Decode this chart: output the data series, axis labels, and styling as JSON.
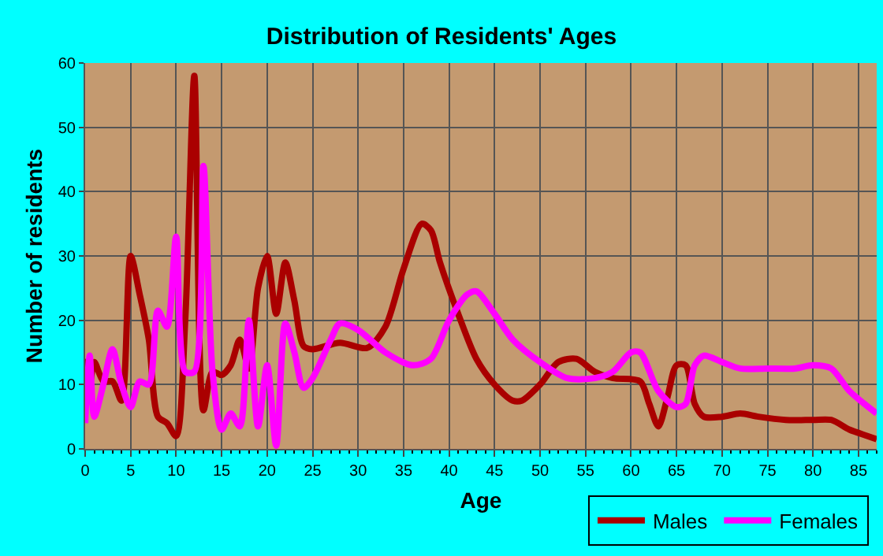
{
  "chart_data": {
    "type": "line",
    "title": "Distribution of Residents' Ages",
    "xlabel": "Age",
    "ylabel": "Number of residents",
    "xlim": [
      0,
      87
    ],
    "xticks": [
      0,
      5,
      10,
      15,
      20,
      25,
      30,
      35,
      40,
      45,
      50,
      55,
      60,
      65,
      70,
      75,
      80,
      85
    ],
    "ylim": [
      0,
      60
    ],
    "yticks": [
      0,
      10,
      20,
      30,
      40,
      50,
      60
    ],
    "grid": true,
    "legend": "bottom right",
    "marker": "none",
    "line_style": "solid",
    "series": [
      {
        "name": "Males",
        "color": "#aa0000",
        "x": [
          0,
          0.5,
          1,
          2,
          3,
          4,
          5,
          6,
          7,
          8,
          9,
          10,
          11,
          12,
          13,
          14,
          15,
          16,
          17,
          18,
          19,
          20,
          21,
          22,
          23,
          24,
          25,
          28,
          31,
          33,
          35,
          37,
          38,
          39,
          41,
          43,
          45,
          47,
          48,
          50,
          52,
          54,
          56,
          58,
          61,
          62,
          63,
          64,
          65,
          66,
          67,
          68,
          70,
          72,
          74,
          77,
          80,
          82,
          84,
          86,
          87
        ],
        "values": [
          14,
          10,
          13.5,
          10.5,
          10.5,
          7.5,
          30,
          24,
          17,
          5,
          4,
          2,
          20,
          58,
          6,
          12,
          11.5,
          13,
          17,
          12.5,
          25,
          30,
          21,
          29,
          23,
          16,
          15.5,
          16.5,
          15.7,
          19,
          28,
          35,
          34,
          29,
          21,
          14,
          10,
          7.5,
          7.5,
          10,
          13.5,
          14,
          12,
          11,
          10.5,
          7,
          3.5,
          8,
          13,
          13,
          7,
          5,
          5,
          5.5,
          5,
          4.5,
          4.5,
          4.5,
          3,
          2,
          1.5
        ]
      },
      {
        "name": "Females",
        "color": "#ff00ff",
        "x": [
          0,
          0.5,
          1,
          2,
          3,
          4,
          5,
          6,
          7,
          8,
          9,
          10,
          11,
          12,
          13,
          14,
          15,
          16,
          17,
          18,
          19,
          20,
          21,
          22,
          23,
          24,
          25,
          27,
          28,
          30,
          33,
          36,
          38,
          40,
          42,
          43,
          45,
          47,
          50,
          53,
          56,
          58,
          60,
          61,
          63,
          65,
          66,
          67,
          68,
          70,
          72,
          75,
          78,
          80,
          82,
          84,
          87
        ],
        "values": [
          4,
          14.5,
          5,
          10,
          15.5,
          10,
          6.5,
          10.5,
          10,
          21.5,
          19,
          33,
          12,
          12,
          44,
          12,
          3,
          5.5,
          3.5,
          20,
          3.5,
          13,
          0.5,
          19.5,
          15,
          9.5,
          11,
          17,
          19.5,
          18.5,
          15,
          13,
          14,
          20,
          24,
          24.5,
          21,
          17,
          13.5,
          11,
          11,
          12,
          15,
          15,
          9,
          6.5,
          7,
          13,
          14.5,
          13.5,
          12.5,
          12.5,
          12.5,
          13,
          12.5,
          9,
          5.5
        ]
      }
    ]
  }
}
